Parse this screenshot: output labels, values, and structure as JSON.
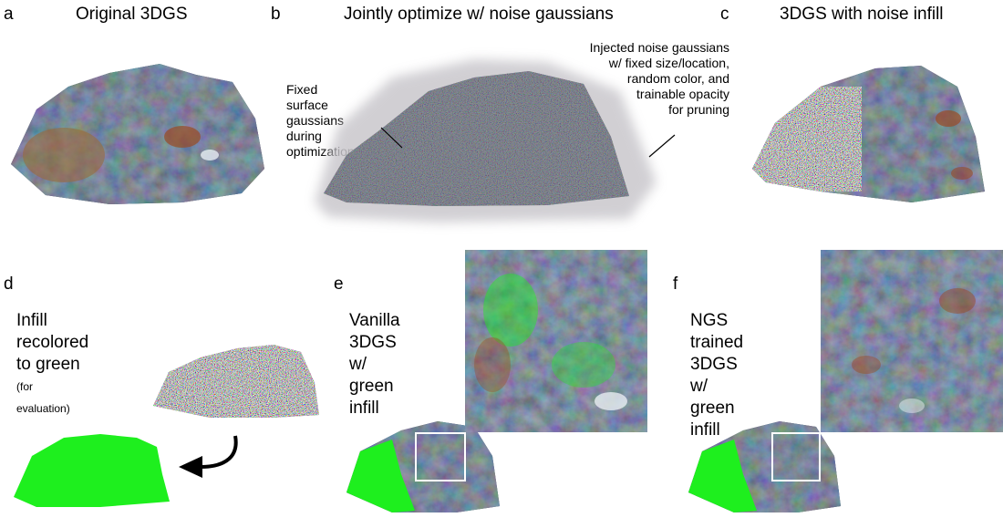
{
  "panels": {
    "a": {
      "letter": "a",
      "title": "Original 3DGS"
    },
    "b": {
      "letter": "b",
      "title": "Jointly optimize w/ noise gaussians",
      "left_note": [
        "Fixed surface",
        "gaussians during",
        "optimization"
      ],
      "right_note": [
        "Injected noise gaussians",
        "w/ fixed size/location,",
        "random color, and",
        "trainable opacity",
        "for pruning"
      ]
    },
    "c": {
      "letter": "c",
      "title": "3DGS with noise infill"
    },
    "d": {
      "letter": "d",
      "note": [
        "Infill recolored",
        "to green"
      ],
      "sub": "(for evaluation)"
    },
    "e": {
      "letter": "e",
      "note": [
        "Vanilla",
        "3DGS w/",
        "green infill"
      ]
    },
    "f": {
      "letter": "f",
      "note": [
        "NGS trained",
        "3DGS w/",
        "green infill"
      ]
    }
  },
  "colors": {
    "rock_dark": "#1f2a3a",
    "rock_mid": "#3a4a5e",
    "rust": "#9a4a24",
    "green": "#1eef1e",
    "haze": "#c9c7cc"
  }
}
